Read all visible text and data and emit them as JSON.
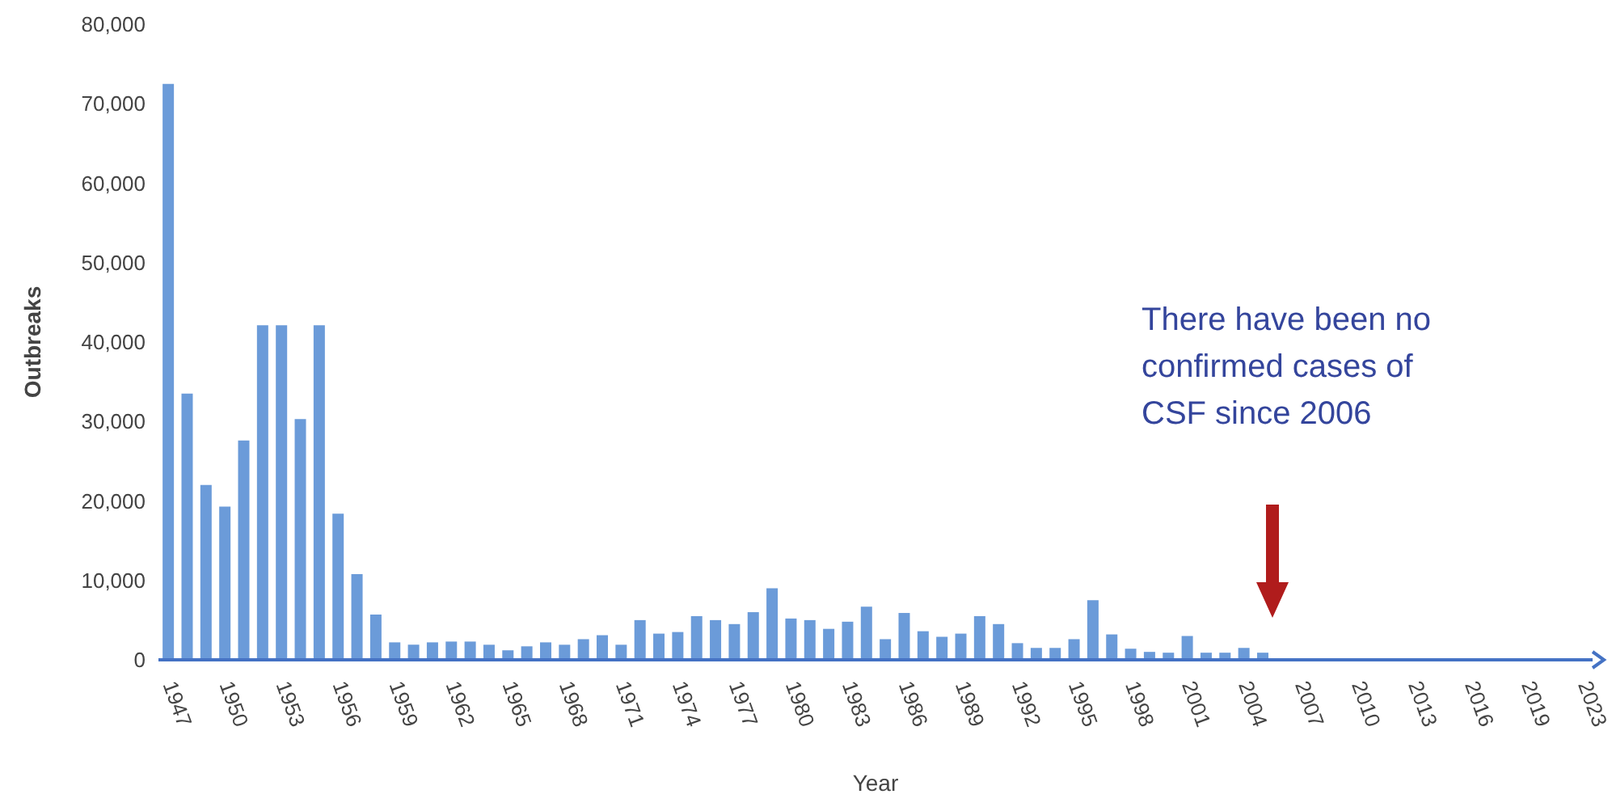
{
  "chart_data": {
    "type": "bar",
    "xlabel": "Year",
    "ylabel": "Outbreaks",
    "categories": [
      "1947",
      null,
      null,
      "1950",
      null,
      null,
      "1953",
      null,
      null,
      "1956",
      null,
      null,
      "1959",
      null,
      null,
      "1962",
      null,
      null,
      "1965",
      null,
      null,
      "1968",
      null,
      null,
      "1971",
      null,
      null,
      "1974",
      null,
      null,
      "1977",
      null,
      null,
      "1980",
      null,
      null,
      "1983",
      null,
      null,
      "1986",
      null,
      null,
      "1989",
      null,
      null,
      "1992",
      null,
      null,
      "1995",
      null,
      null,
      "1998",
      null,
      null,
      "2001",
      null,
      null,
      "2004",
      null,
      null,
      "2007",
      null,
      null,
      "2010",
      null,
      null,
      "2013",
      null,
      null,
      "2016",
      null,
      null,
      "2019",
      null,
      null,
      "2023"
    ],
    "values": [
      72500,
      33500,
      22000,
      19300,
      27600,
      42100,
      42100,
      30300,
      42100,
      18400,
      10800,
      5700,
      2200,
      1900,
      2200,
      2300,
      2300,
      1900,
      1200,
      1700,
      2200,
      1900,
      2600,
      3100,
      1900,
      5000,
      3300,
      3500,
      5500,
      5000,
      4500,
      6000,
      9000,
      5200,
      5000,
      3900,
      4800,
      6700,
      2600,
      5900,
      3600,
      2900,
      3300,
      5500,
      4500,
      2100,
      1500,
      1500,
      2600,
      7500,
      3200,
      1400,
      1000,
      900,
      3000,
      900,
      900,
      1500,
      900,
      200,
      200,
      200,
      200,
      200,
      200,
      200,
      200,
      200,
      200,
      200,
      200,
      0,
      0,
      0,
      0,
      0
    ],
    "color": "#6b9bd9",
    "ylim": [
      0,
      80000
    ],
    "yticks": [
      0,
      {
        "value": 10000,
        "label": "10,000"
      },
      {
        "value": 20000,
        "label": "20,000"
      },
      {
        "value": 30000,
        "label": "30,000"
      },
      {
        "value": 40000,
        "label": "40,000"
      },
      {
        "value": 50000,
        "label": "50,000"
      },
      {
        "value": 60000,
        "label": "60,000"
      },
      {
        "value": 70000,
        "label": "70,000"
      },
      {
        "value": 80000,
        "label": "80,000"
      }
    ],
    "annotations": [
      "There have been no confirmed cases of CSF since 2006"
    ]
  }
}
